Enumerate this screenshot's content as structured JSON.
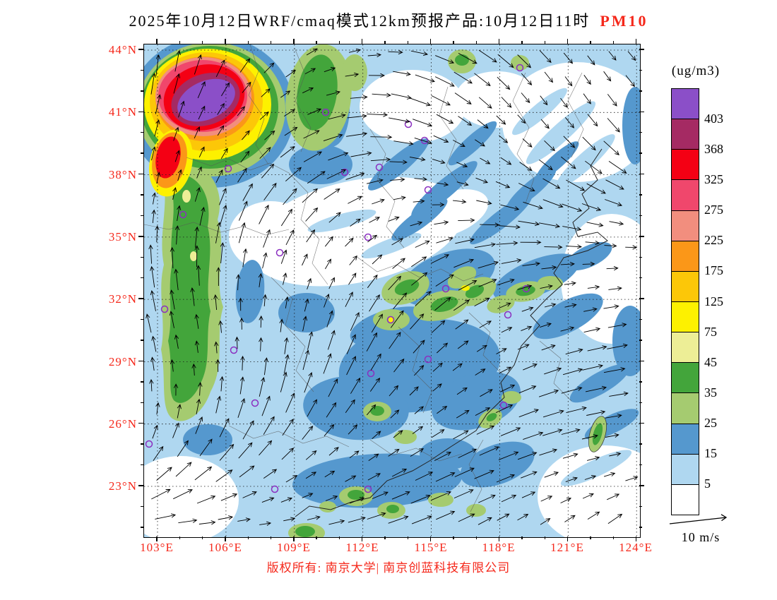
{
  "title": {
    "text": "2025年10月12日WRF/cmaq模式12km预报产品:10月12日11时",
    "pollutant": "PM10"
  },
  "axes": {
    "lat_labels": [
      "44°N",
      "41°N",
      "38°N",
      "35°N",
      "32°N",
      "29°N",
      "26°N",
      "23°N"
    ],
    "lon_labels": [
      "103°E",
      "106°E",
      "109°E",
      "112°E",
      "115°E",
      "118°E",
      "121°E",
      "124°E"
    ]
  },
  "colorbar": {
    "unit": "(ug/m3)",
    "levels": [
      "403",
      "368",
      "325",
      "275",
      "225",
      "175",
      "125",
      "75",
      "45",
      "35",
      "25",
      "15",
      "5"
    ],
    "colors": [
      "#8B4FC8",
      "#A52A63",
      "#F40014",
      "#F0476C",
      "#F28E7E",
      "#FB9718",
      "#FCC708",
      "#FDF100",
      "#EDEE96",
      "#43A53B",
      "#A5CB70",
      "#5598CE",
      "#AFD7F0",
      "#FFFFFF"
    ]
  },
  "wind_legend": {
    "label": "10 m/s"
  },
  "footer": {
    "copyright": "版权所有: 南京大学| 南京创蓝科技有限公司"
  },
  "map": {
    "stations": [
      [
        257,
        96
      ],
      [
        374,
        113
      ],
      [
        397,
        136
      ],
      [
        532,
        33
      ],
      [
        119,
        176
      ],
      [
        284,
        181
      ],
      [
        333,
        174
      ],
      [
        402,
        206
      ],
      [
        55,
        241
      ],
      [
        317,
        273
      ],
      [
        192,
        295
      ],
      [
        427,
        346
      ],
      [
        541,
        346
      ],
      [
        515,
        383
      ],
      [
        29,
        375
      ],
      [
        349,
        390
      ],
      [
        127,
        433
      ],
      [
        402,
        446
      ],
      [
        321,
        466
      ],
      [
        157,
        508
      ],
      [
        509,
        511
      ],
      [
        7,
        566
      ],
      [
        185,
        630
      ],
      [
        317,
        630
      ]
    ]
  }
}
